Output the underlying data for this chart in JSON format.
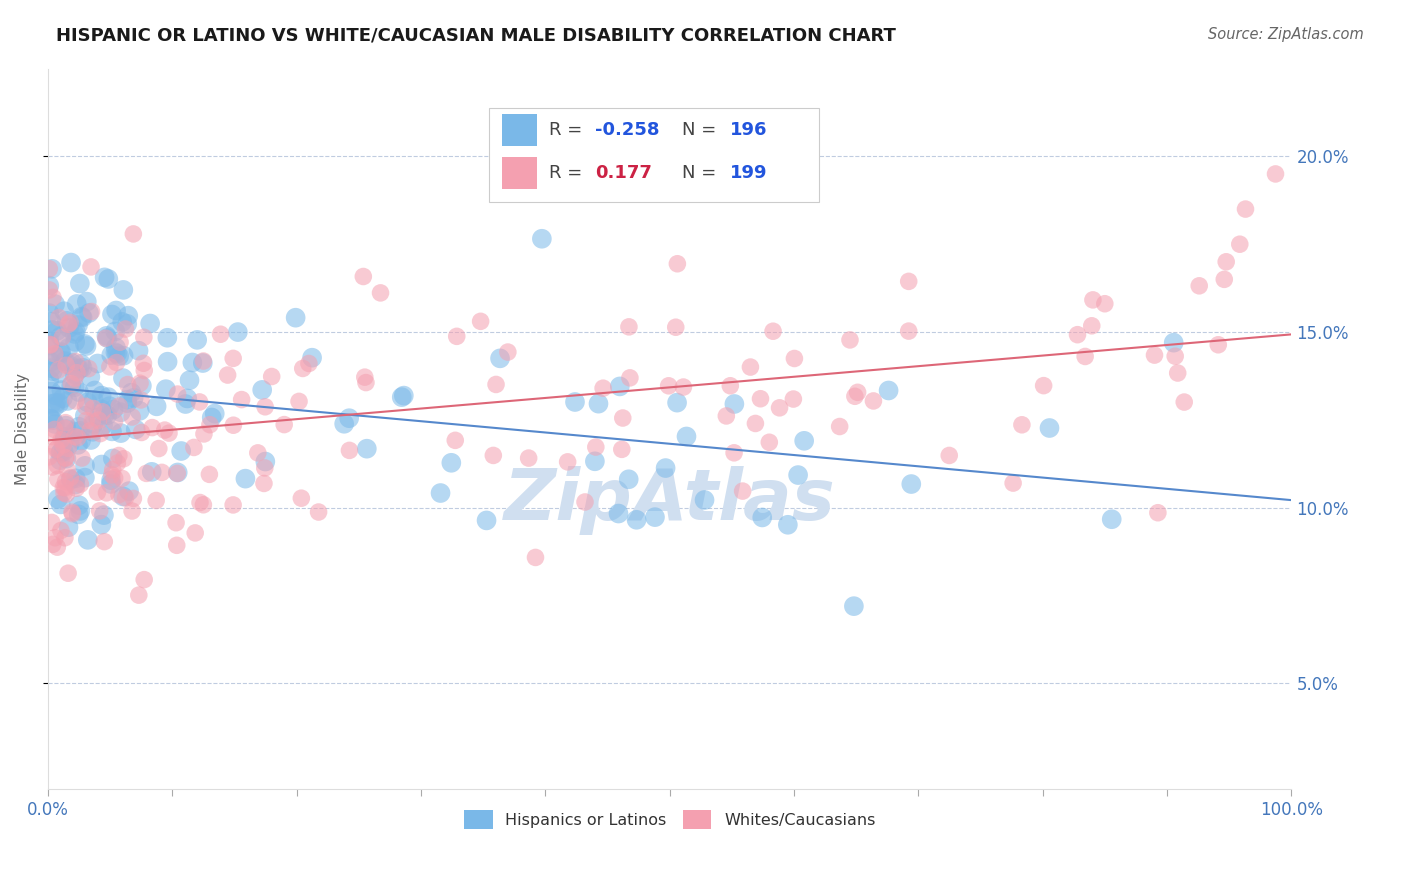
{
  "title": "HISPANIC OR LATINO VS WHITE/CAUCASIAN MALE DISABILITY CORRELATION CHART",
  "source": "Source: ZipAtlas.com",
  "ylabel": "Male Disability",
  "blue_R": -0.258,
  "blue_N": 196,
  "pink_R": 0.177,
  "pink_N": 199,
  "blue_color": "#7ab8e8",
  "pink_color": "#f4a0b0",
  "blue_line_color": "#5588cc",
  "pink_line_color": "#dd6677",
  "title_color": "#1a1a1a",
  "source_color": "#666666",
  "tick_color": "#4477bb",
  "ylabel_color": "#666666",
  "legend_R_blue_color": "#2255dd",
  "legend_R_pink_color": "#cc2244",
  "legend_N_color": "#2255dd",
  "watermark_color": "#d0dff0",
  "grid_color": "#c0cce0",
  "xlim": [
    0.0,
    1.0
  ],
  "ylim": [
    0.02,
    0.225
  ],
  "yticks": [
    0.05,
    0.1,
    0.15,
    0.2
  ],
  "xticks": [
    0.0,
    0.1,
    0.2,
    0.3,
    0.4,
    0.5,
    0.6,
    0.7,
    0.8,
    0.9,
    1.0
  ],
  "background_color": "#ffffff"
}
